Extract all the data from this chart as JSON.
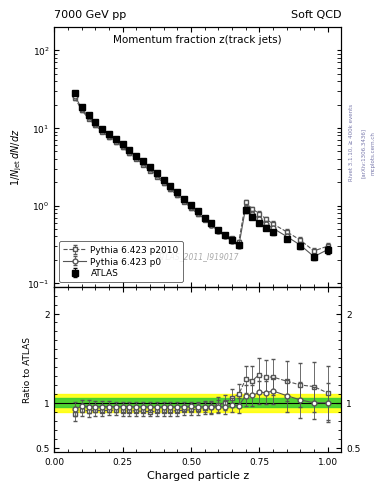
{
  "title_left": "7000 GeV pp",
  "title_right": "Soft QCD",
  "plot_title": "Momentum fraction z(track jets)",
  "xlabel": "Charged particle z",
  "ylabel_main": "1/N_{jet} dN/dz",
  "ylabel_ratio": "Ratio to ATLAS",
  "right_label": "Rivet 3.1.10, ≥ 400k events  [arXiv:1306.3436]",
  "watermark": "ATLAS_2011_I919017",
  "atlas_x": [
    0.075,
    0.1,
    0.125,
    0.15,
    0.175,
    0.2,
    0.225,
    0.25,
    0.275,
    0.3,
    0.325,
    0.35,
    0.375,
    0.4,
    0.425,
    0.45,
    0.475,
    0.5,
    0.525,
    0.55,
    0.575,
    0.6,
    0.625,
    0.65,
    0.675,
    0.7,
    0.725,
    0.75,
    0.775,
    0.8,
    0.85,
    0.9,
    0.95,
    1.0
  ],
  "atlas_y": [
    28.0,
    18.5,
    14.5,
    11.8,
    9.8,
    8.3,
    7.2,
    6.2,
    5.2,
    4.4,
    3.7,
    3.1,
    2.6,
    2.15,
    1.78,
    1.48,
    1.22,
    1.01,
    0.84,
    0.7,
    0.59,
    0.49,
    0.42,
    0.36,
    0.31,
    0.87,
    0.72,
    0.6,
    0.52,
    0.45,
    0.37,
    0.3,
    0.22,
    0.27
  ],
  "atlas_yerr": [
    1.5,
    1.0,
    0.8,
    0.6,
    0.5,
    0.4,
    0.35,
    0.3,
    0.25,
    0.2,
    0.18,
    0.15,
    0.12,
    0.1,
    0.08,
    0.07,
    0.06,
    0.05,
    0.04,
    0.035,
    0.03,
    0.025,
    0.02,
    0.018,
    0.016,
    0.06,
    0.05,
    0.04,
    0.035,
    0.03,
    0.025,
    0.025,
    0.02,
    0.03
  ],
  "p0_x": [
    0.075,
    0.1,
    0.125,
    0.15,
    0.175,
    0.2,
    0.225,
    0.25,
    0.275,
    0.3,
    0.325,
    0.35,
    0.375,
    0.4,
    0.425,
    0.45,
    0.475,
    0.5,
    0.525,
    0.55,
    0.575,
    0.6,
    0.625,
    0.65,
    0.675,
    0.7,
    0.725,
    0.75,
    0.775,
    0.8,
    0.85,
    0.9,
    0.95,
    1.0
  ],
  "p0_y": [
    26.0,
    17.8,
    13.9,
    11.3,
    9.4,
    7.95,
    6.9,
    5.93,
    4.98,
    4.2,
    3.53,
    2.96,
    2.47,
    2.05,
    1.7,
    1.41,
    1.17,
    0.97,
    0.8,
    0.67,
    0.56,
    0.47,
    0.4,
    0.35,
    0.3,
    0.94,
    0.78,
    0.67,
    0.58,
    0.51,
    0.4,
    0.31,
    0.22,
    0.27
  ],
  "p0_yerr": [
    1.4,
    0.9,
    0.75,
    0.55,
    0.45,
    0.38,
    0.33,
    0.28,
    0.23,
    0.19,
    0.17,
    0.14,
    0.11,
    0.09,
    0.08,
    0.065,
    0.055,
    0.045,
    0.038,
    0.032,
    0.027,
    0.023,
    0.02,
    0.017,
    0.015,
    0.07,
    0.06,
    0.05,
    0.045,
    0.04,
    0.032,
    0.025,
    0.018,
    0.022
  ],
  "p2010_x": [
    0.075,
    0.1,
    0.125,
    0.15,
    0.175,
    0.2,
    0.225,
    0.25,
    0.275,
    0.3,
    0.325,
    0.35,
    0.375,
    0.4,
    0.425,
    0.45,
    0.475,
    0.5,
    0.525,
    0.55,
    0.575,
    0.6,
    0.625,
    0.65,
    0.675,
    0.7,
    0.725,
    0.75,
    0.775,
    0.8,
    0.85,
    0.9,
    0.95,
    1.0
  ],
  "p2010_y": [
    24.5,
    17.0,
    13.2,
    10.8,
    8.95,
    7.6,
    6.6,
    5.65,
    4.75,
    4.0,
    3.35,
    2.8,
    2.35,
    1.95,
    1.62,
    1.35,
    1.12,
    0.93,
    0.78,
    0.66,
    0.56,
    0.48,
    0.42,
    0.38,
    0.34,
    1.1,
    0.9,
    0.79,
    0.67,
    0.58,
    0.46,
    0.36,
    0.26,
    0.3
  ],
  "p2010_yerr": [
    1.3,
    0.85,
    0.7,
    0.52,
    0.43,
    0.36,
    0.32,
    0.27,
    0.22,
    0.18,
    0.16,
    0.13,
    0.11,
    0.09,
    0.076,
    0.063,
    0.052,
    0.044,
    0.037,
    0.032,
    0.027,
    0.024,
    0.021,
    0.019,
    0.017,
    0.08,
    0.07,
    0.06,
    0.052,
    0.045,
    0.035,
    0.028,
    0.021,
    0.025
  ],
  "ratio_p0_y": [
    0.929,
    0.962,
    0.959,
    0.958,
    0.959,
    0.958,
    0.958,
    0.956,
    0.958,
    0.955,
    0.954,
    0.955,
    0.95,
    0.953,
    0.955,
    0.953,
    0.959,
    0.96,
    0.952,
    0.957,
    0.949,
    0.959,
    0.952,
    0.972,
    0.968,
    1.08,
    1.083,
    1.117,
    1.115,
    1.133,
    1.081,
    1.033,
    1.0,
    1.0
  ],
  "ratio_p0_yerr": [
    0.08,
    0.07,
    0.07,
    0.06,
    0.06,
    0.06,
    0.055,
    0.055,
    0.055,
    0.055,
    0.055,
    0.055,
    0.055,
    0.055,
    0.055,
    0.055,
    0.055,
    0.055,
    0.055,
    0.06,
    0.065,
    0.07,
    0.075,
    0.08,
    0.085,
    0.12,
    0.12,
    0.13,
    0.13,
    0.15,
    0.18,
    0.2,
    0.18,
    0.22
  ],
  "ratio_p2010_y": [
    0.875,
    0.919,
    0.91,
    0.915,
    0.913,
    0.916,
    0.917,
    0.911,
    0.913,
    0.909,
    0.905,
    0.903,
    0.904,
    0.907,
    0.91,
    0.912,
    0.918,
    0.921,
    0.929,
    0.943,
    0.949,
    0.98,
    1.0,
    1.056,
    1.097,
    1.264,
    1.25,
    1.317,
    1.288,
    1.289,
    1.243,
    1.2,
    1.182,
    1.111
  ],
  "ratio_p2010_yerr": [
    0.08,
    0.07,
    0.065,
    0.06,
    0.06,
    0.055,
    0.055,
    0.055,
    0.055,
    0.055,
    0.055,
    0.055,
    0.055,
    0.055,
    0.055,
    0.055,
    0.055,
    0.06,
    0.065,
    0.07,
    0.075,
    0.08,
    0.085,
    0.1,
    0.11,
    0.15,
    0.16,
    0.18,
    0.19,
    0.2,
    0.22,
    0.25,
    0.28,
    0.3
  ],
  "green_band_lo": 0.95,
  "green_band_hi": 1.05,
  "yellow_band_lo": 0.9,
  "yellow_band_hi": 1.1,
  "xlim": [
    0.0,
    1.05
  ],
  "ylim_main": [
    0.09,
    200
  ],
  "ylim_ratio": [
    0.45,
    2.3
  ],
  "bg_color": "#ffffff"
}
